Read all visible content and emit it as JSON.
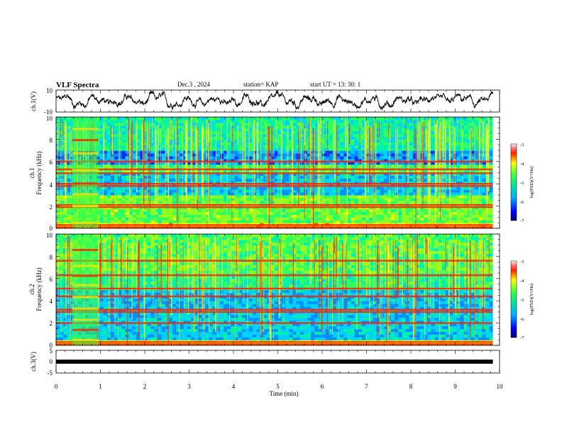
{
  "header": {
    "title": "VLF Spectra",
    "date": "Dec.3  , 2024",
    "station": "station= KAP",
    "start": "start  UT  =   13: 30: 1"
  },
  "chart_data": [
    {
      "type": "line",
      "name": "ch1-waveform",
      "ylabel": "ch.1(V)",
      "ylim": [
        -10,
        10
      ],
      "yticks": [
        "10",
        "-10"
      ],
      "xlim": [
        0,
        10
      ],
      "xlabel": "",
      "description_values": "fluctuating waveform, mostly between -8 and 8 V"
    },
    {
      "type": "heatmap",
      "name": "ch1-spectrogram",
      "ylabel": "ch.1\nFrequency (kHz)",
      "ylim": [
        0,
        10
      ],
      "yticks": [
        "0",
        "2",
        "4",
        "6",
        "8",
        "10"
      ],
      "xlim": [
        0,
        9.85
      ],
      "colorbar": {
        "label": "log(PSD)(V²/Hz)",
        "range": [
          -7,
          -3
        ],
        "ticks": [
          "-3",
          "-4",
          "-5",
          "-6",
          "-7"
        ]
      },
      "bands_khz": [
        0.1,
        0.3,
        1.9,
        2.1,
        3.8,
        4.0,
        4.95,
        5.3,
        6.0
      ],
      "burst_min": [
        0.37,
        0.95
      ]
    },
    {
      "type": "heatmap",
      "name": "ch2-spectrogram",
      "ylabel": "ch.2\nFrequency (kHz)",
      "ylim": [
        0,
        10
      ],
      "yticks": [
        "0",
        "2",
        "4",
        "6",
        "8",
        "10"
      ],
      "xlim": [
        0,
        9.85
      ],
      "colorbar": {
        "label": "log(PSD)(V²/Hz)",
        "range": [
          -7,
          -3
        ],
        "ticks": [
          "-3",
          "-4",
          "-5",
          "-6",
          "-7"
        ]
      },
      "bands_khz": [
        0.1,
        0.3,
        2.0,
        3.0,
        3.2,
        4.4,
        5.1,
        6.3,
        7.6
      ],
      "burst_min": [
        0.37,
        0.95
      ]
    },
    {
      "type": "line",
      "name": "ch3-trace",
      "ylabel": "ch.3(V)",
      "ylim": [
        -5,
        5
      ],
      "yticks": [
        "5",
        "0",
        "-5"
      ],
      "xlim": [
        0,
        10
      ],
      "xlabel": "Time  (min)",
      "xticks": [
        "0",
        "1",
        "2",
        "3",
        "4",
        "5",
        "6",
        "7",
        "8",
        "9",
        "10"
      ],
      "values_level": [
        -0.3,
        0.3
      ]
    }
  ]
}
